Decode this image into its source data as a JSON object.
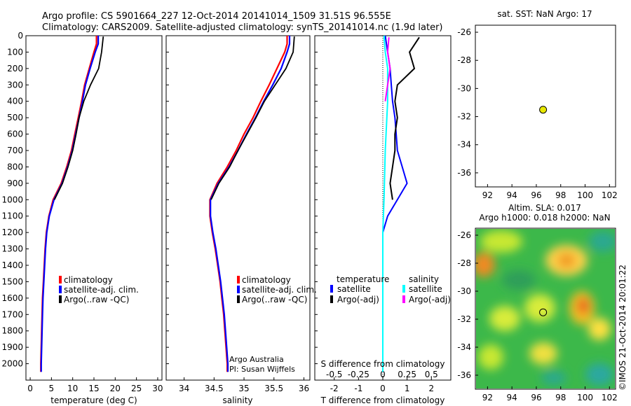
{
  "header": {
    "line1": "Argo profile: CS 5901664_227 12-Oct-2014 20141014_1509 31.51S 96.555E",
    "line2": "Climatology: CARS2009. Satellite-adjusted climatology: synTS_20141014.nc (1.9d later)"
  },
  "colors": {
    "climatology": "#ff0000",
    "satellite": "#0000ff",
    "argo": "#000000",
    "sal_satellite": "#00ffff",
    "sal_argo": "#ff00ff",
    "marker": "#e8e800"
  },
  "panels": {
    "temp": {
      "xlabel": "temperature (deg C)",
      "xticks": [
        "0",
        "5",
        "10",
        "15",
        "20",
        "25",
        "30"
      ]
    },
    "sal": {
      "xlabel": "salinity",
      "xticks": [
        "34",
        "34.5",
        "35",
        "35.5",
        "36"
      ]
    },
    "diff": {
      "xlabel": "T difference from climatology",
      "xlabel_top": "S difference from climatology",
      "xticks_bottom": [
        "-2",
        "-1",
        "0",
        "1",
        "2"
      ],
      "xticks_top": [
        "-0.5",
        "-0.25",
        "0",
        "0.25",
        "0.5"
      ]
    },
    "depth_ticks": [
      "0",
      "100",
      "200",
      "300",
      "400",
      "500",
      "600",
      "700",
      "800",
      "900",
      "1000",
      "1100",
      "1200",
      "1300",
      "1400",
      "1500",
      "1600",
      "1700",
      "1800",
      "1900",
      "2000"
    ]
  },
  "legend": {
    "climatology": "climatology",
    "satellite": "satellite-adj. clim.",
    "argo": "Argo(..raw -QC)"
  },
  "diff_legend": {
    "temperature": "temperature",
    "salinity": "salinity",
    "satellite": "satellite",
    "argo_adj": "Argo(-adj)"
  },
  "credit": {
    "line1": "Argo Australia",
    "line2": "PI: Susan Wijffels"
  },
  "map_sst": {
    "title": "sat. SST: NaN Argo: 17",
    "yticks": [
      "-26",
      "-28",
      "-30",
      "-32",
      "-34",
      "-36"
    ],
    "xticks": [
      "92",
      "94",
      "96",
      "98",
      "100",
      "102"
    ]
  },
  "map_sla": {
    "title1": "Altim. SLA: 0.017",
    "title2": "Argo h1000: 0.018 h2000: NaN",
    "yticks": [
      "-26",
      "-28",
      "-30",
      "-32",
      "-34",
      "-36"
    ],
    "xticks": [
      "92",
      "94",
      "96",
      "98",
      "100",
      "102"
    ]
  },
  "imos": "©IMOS 21-Oct-2014 20:01:22",
  "chart_data": {
    "type": "line",
    "panels": [
      {
        "name": "temperature",
        "xlabel": "temperature (deg C)",
        "xlim": [
          -1,
          31
        ],
        "ylim": [
          2100,
          0
        ],
        "series": [
          {
            "name": "climatology",
            "points": [
              [
                15.6,
                0
              ],
              [
                15.6,
                50
              ],
              [
                15.0,
                100
              ],
              [
                13.9,
                200
              ],
              [
                12.8,
                300
              ],
              [
                12.1,
                400
              ],
              [
                11.3,
                500
              ],
              [
                10.5,
                600
              ],
              [
                9.7,
                700
              ],
              [
                8.6,
                800
              ],
              [
                7.3,
                900
              ],
              [
                5.4,
                1000
              ],
              [
                4.4,
                1100
              ],
              [
                3.8,
                1200
              ],
              [
                3.5,
                1300
              ],
              [
                3.3,
                1400
              ],
              [
                3.1,
                1500
              ],
              [
                2.9,
                1600
              ],
              [
                2.8,
                1700
              ],
              [
                2.7,
                1800
              ],
              [
                2.6,
                1900
              ],
              [
                2.5,
                2000
              ],
              [
                2.5,
                2050
              ]
            ]
          },
          {
            "name": "satellite-adj. clim.",
            "points": [
              [
                16.0,
                0
              ],
              [
                16.0,
                50
              ],
              [
                15.3,
                100
              ],
              [
                14.1,
                200
              ],
              [
                13.0,
                300
              ],
              [
                12.3,
                400
              ],
              [
                11.5,
                500
              ],
              [
                10.7,
                600
              ],
              [
                9.9,
                700
              ],
              [
                8.8,
                800
              ],
              [
                7.5,
                900
              ],
              [
                5.6,
                1000
              ],
              [
                4.5,
                1100
              ],
              [
                3.9,
                1200
              ],
              [
                3.6,
                1300
              ],
              [
                3.4,
                1400
              ],
              [
                3.2,
                1500
              ],
              [
                3.0,
                1600
              ],
              [
                2.9,
                1700
              ],
              [
                2.8,
                1800
              ],
              [
                2.7,
                1900
              ],
              [
                2.6,
                2000
              ],
              [
                2.6,
                2050
              ]
            ]
          },
          {
            "name": "Argo(..raw -QC)",
            "points": [
              [
                17.2,
                5
              ],
              [
                16.8,
                100
              ],
              [
                16.1,
                200
              ],
              [
                14.2,
                300
              ],
              [
                12.6,
                400
              ],
              [
                11.5,
                500
              ],
              [
                10.8,
                600
              ],
              [
                10.0,
                700
              ],
              [
                8.9,
                800
              ],
              [
                7.6,
                900
              ],
              [
                5.7,
                1000
              ]
            ]
          }
        ]
      },
      {
        "name": "salinity",
        "xlabel": "salinity",
        "xlim": [
          33.7,
          36.1
        ],
        "ylim": [
          2100,
          0
        ],
        "series": [
          {
            "name": "climatology",
            "points": [
              [
                35.72,
                0
              ],
              [
                35.72,
                50
              ],
              [
                35.68,
                100
              ],
              [
                35.55,
                200
              ],
              [
                35.42,
                300
              ],
              [
                35.28,
                400
              ],
              [
                35.15,
                500
              ],
              [
                35.0,
                600
              ],
              [
                34.87,
                700
              ],
              [
                34.72,
                800
              ],
              [
                34.55,
                900
              ],
              [
                34.43,
                1000
              ],
              [
                34.43,
                1100
              ],
              [
                34.47,
                1200
              ],
              [
                34.52,
                1300
              ],
              [
                34.56,
                1400
              ],
              [
                34.6,
                1500
              ],
              [
                34.63,
                1600
              ],
              [
                34.66,
                1700
              ],
              [
                34.68,
                1800
              ],
              [
                34.7,
                1900
              ],
              [
                34.72,
                2000
              ],
              [
                34.72,
                2050
              ]
            ]
          },
          {
            "name": "satellite-adj. clim.",
            "points": [
              [
                35.76,
                0
              ],
              [
                35.76,
                50
              ],
              [
                35.72,
                100
              ],
              [
                35.62,
                200
              ],
              [
                35.48,
                300
              ],
              [
                35.33,
                400
              ],
              [
                35.19,
                500
              ],
              [
                35.04,
                600
              ],
              [
                34.9,
                700
              ],
              [
                34.75,
                800
              ],
              [
                34.57,
                900
              ],
              [
                34.44,
                1000
              ],
              [
                34.44,
                1100
              ],
              [
                34.48,
                1200
              ],
              [
                34.53,
                1300
              ],
              [
                34.57,
                1400
              ],
              [
                34.61,
                1500
              ],
              [
                34.64,
                1600
              ],
              [
                34.67,
                1700
              ],
              [
                34.69,
                1800
              ],
              [
                34.71,
                1900
              ],
              [
                34.73,
                2000
              ],
              [
                34.73,
                2050
              ]
            ]
          },
          {
            "name": "Argo(..raw -QC)",
            "points": [
              [
                35.84,
                5
              ],
              [
                35.82,
                100
              ],
              [
                35.7,
                200
              ],
              [
                35.52,
                300
              ],
              [
                35.34,
                400
              ],
              [
                35.2,
                500
              ],
              [
                35.05,
                600
              ],
              [
                34.9,
                700
              ],
              [
                34.76,
                800
              ],
              [
                34.58,
                900
              ],
              [
                34.45,
                1000
              ]
            ]
          }
        ]
      },
      {
        "name": "difference",
        "xlabel": "T difference from climatology",
        "xlim": [
          -2.8,
          2.8
        ],
        "ylim": [
          2100,
          0
        ],
        "series": [
          {
            "name": "temperature satellite",
            "points": [
              [
                0.1,
                0
              ],
              [
                0.2,
                100
              ],
              [
                0.3,
                200
              ],
              [
                0.35,
                300
              ],
              [
                0.4,
                400
              ],
              [
                0.5,
                500
              ],
              [
                0.55,
                600
              ],
              [
                0.6,
                700
              ],
              [
                0.8,
                800
              ],
              [
                1.0,
                900
              ],
              [
                0.6,
                1000
              ],
              [
                0.2,
                1100
              ],
              [
                0.0,
                1200
              ],
              [
                0.0,
                2050
              ]
            ]
          },
          {
            "name": "temperature Argo(-adj)",
            "points": [
              [
                1.5,
                10
              ],
              [
                1.1,
                100
              ],
              [
                1.3,
                200
              ],
              [
                0.6,
                300
              ],
              [
                0.5,
                400
              ],
              [
                0.6,
                500
              ],
              [
                0.5,
                600
              ],
              [
                0.5,
                700
              ],
              [
                0.4,
                800
              ],
              [
                0.3,
                900
              ],
              [
                0.4,
                1000
              ]
            ]
          },
          {
            "name": "salinity satellite",
            "points": [
              [
                0.05,
                0
              ],
              [
                0.1,
                100
              ],
              [
                0.2,
                200
              ],
              [
                0.2,
                400
              ],
              [
                0.1,
                700
              ],
              [
                0.05,
                1000
              ],
              [
                0.0,
                1200
              ],
              [
                0.0,
                2050
              ]
            ]
          },
          {
            "name": "salinity Argo(-adj)",
            "points": [
              [
                0.25,
                10
              ],
              [
                0.2,
                100
              ],
              [
                0.3,
                200
              ],
              [
                0.2,
                300
              ],
              [
                0.1,
                400
              ]
            ]
          }
        ]
      }
    ],
    "maps": [
      {
        "name": "sat. SST",
        "marker": {
          "lon": 96.555,
          "lat": -31.51
        },
        "xlim": [
          91,
          102.5
        ],
        "ylim": [
          -37,
          -25.5
        ]
      },
      {
        "name": "Altim. SLA",
        "marker": {
          "lon": 96.555,
          "lat": -31.51
        },
        "xlim": [
          91,
          102.5
        ],
        "ylim": [
          -37,
          -25.5
        ]
      }
    ]
  }
}
